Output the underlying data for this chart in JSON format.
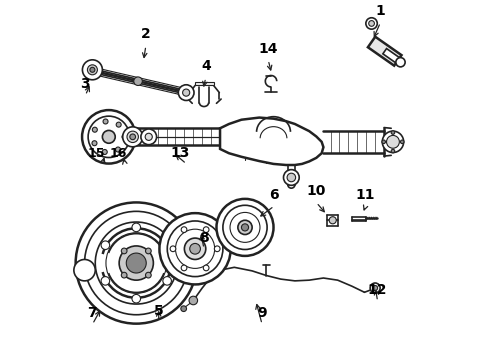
{
  "bg_color": "#ffffff",
  "line_color": "#222222",
  "figsize": [
    4.9,
    3.6
  ],
  "dpi": 100,
  "label_positions": {
    "1": [
      0.88,
      0.945,
      0.858,
      0.895
    ],
    "2": [
      0.222,
      0.88,
      0.215,
      0.835
    ],
    "3": [
      0.052,
      0.74,
      0.068,
      0.775
    ],
    "4": [
      0.39,
      0.79,
      0.382,
      0.755
    ],
    "5": [
      0.258,
      0.105,
      0.258,
      0.145
    ],
    "6": [
      0.582,
      0.43,
      0.535,
      0.395
    ],
    "7": [
      0.072,
      0.098,
      0.098,
      0.145
    ],
    "8": [
      0.385,
      0.31,
      0.375,
      0.36
    ],
    "9": [
      0.548,
      0.098,
      0.53,
      0.165
    ],
    "10": [
      0.7,
      0.44,
      0.73,
      0.405
    ],
    "11": [
      0.838,
      0.43,
      0.83,
      0.408
    ],
    "12": [
      0.872,
      0.162,
      0.865,
      0.205
    ],
    "13": [
      0.318,
      0.548,
      0.298,
      0.58
    ],
    "14": [
      0.565,
      0.84,
      0.575,
      0.8
    ],
    "15": [
      0.082,
      0.548,
      0.108,
      0.575
    ],
    "16": [
      0.145,
      0.548,
      0.158,
      0.572
    ]
  }
}
